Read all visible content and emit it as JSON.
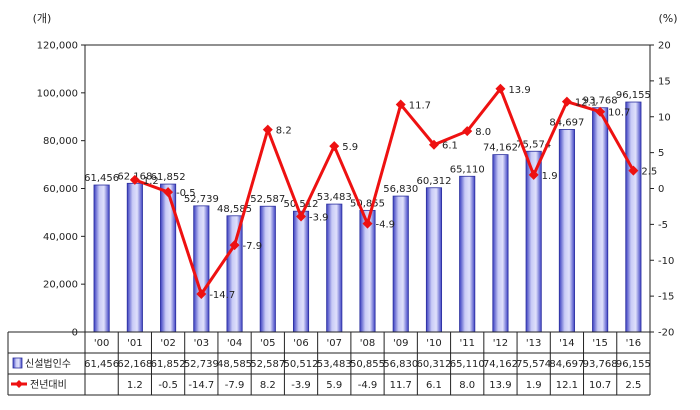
{
  "chart_data": {
    "type": "bar+line",
    "categories": [
      "'00",
      "'01",
      "'02",
      "'03",
      "'04",
      "'05",
      "'06",
      "'07",
      "'08",
      "'09",
      "'10",
      "'11",
      "'12",
      "'13",
      "'14",
      "'15",
      "'16"
    ],
    "left_axis": {
      "unit": "(개)",
      "ylim": [
        0,
        120000
      ],
      "ticks": [
        "0",
        "20,000",
        "40,000",
        "60,000",
        "80,000",
        "100,000",
        "120,000"
      ]
    },
    "right_axis": {
      "unit": "(%)",
      "ylim": [
        -20,
        20
      ],
      "ticks": [
        "-20",
        "-15",
        "-10",
        "-5",
        "0",
        "5",
        "10",
        "15",
        "20"
      ]
    },
    "series": [
      {
        "name": "신설법인수",
        "kind": "bar",
        "color": "#5b5fd6",
        "values": [
          61456,
          62168,
          61852,
          52739,
          48585,
          52587,
          50512,
          53483,
          50855,
          56830,
          60312,
          65110,
          74162,
          75574,
          84697,
          93768,
          96155
        ],
        "labels": [
          "61,456",
          "62,168",
          "61,852",
          "52,739",
          "48,585",
          "52,587",
          "50,512",
          "53,483",
          "50,855",
          "56,830",
          "60,312",
          "65,110",
          "74,162",
          "75,574",
          "84,697",
          "93,768",
          "96,155"
        ]
      },
      {
        "name": "전년대비",
        "kind": "line",
        "axis": "right",
        "color": "#ee1111",
        "values": [
          null,
          1.2,
          -0.5,
          -14.7,
          -7.9,
          8.2,
          -3.9,
          5.9,
          -4.9,
          11.7,
          6.1,
          8.0,
          13.9,
          1.9,
          12.1,
          10.7,
          2.5
        ],
        "labels": [
          "",
          "1.2",
          "-0.5",
          "-14.7",
          "-7.9",
          "8.2",
          "-3.9",
          "5.9",
          "-4.9",
          "11.7",
          "6.1",
          "8.0",
          "13.9",
          "1.9",
          "12.1",
          "10.7",
          "2.5"
        ]
      }
    ],
    "table": {
      "rows": [
        {
          "name": "신설법인수",
          "cells": [
            "61,456",
            "62,168",
            "61,852",
            "52,739",
            "48,585",
            "52,587",
            "50,512",
            "53,483",
            "50,855",
            "56,830",
            "60,312",
            "65,110",
            "74,162",
            "75,574",
            "84,697",
            "93,768",
            "96,155"
          ]
        },
        {
          "name": "전년대비",
          "cells": [
            "",
            "1.2",
            "-0.5",
            "-14.7",
            "-7.9",
            "8.2",
            "-3.9",
            "5.9",
            "-4.9",
            "11.7",
            "6.1",
            "8.0",
            "13.9",
            "1.9",
            "12.1",
            "10.7",
            "2.5"
          ]
        }
      ]
    },
    "grid": false,
    "legend": "table-left"
  }
}
